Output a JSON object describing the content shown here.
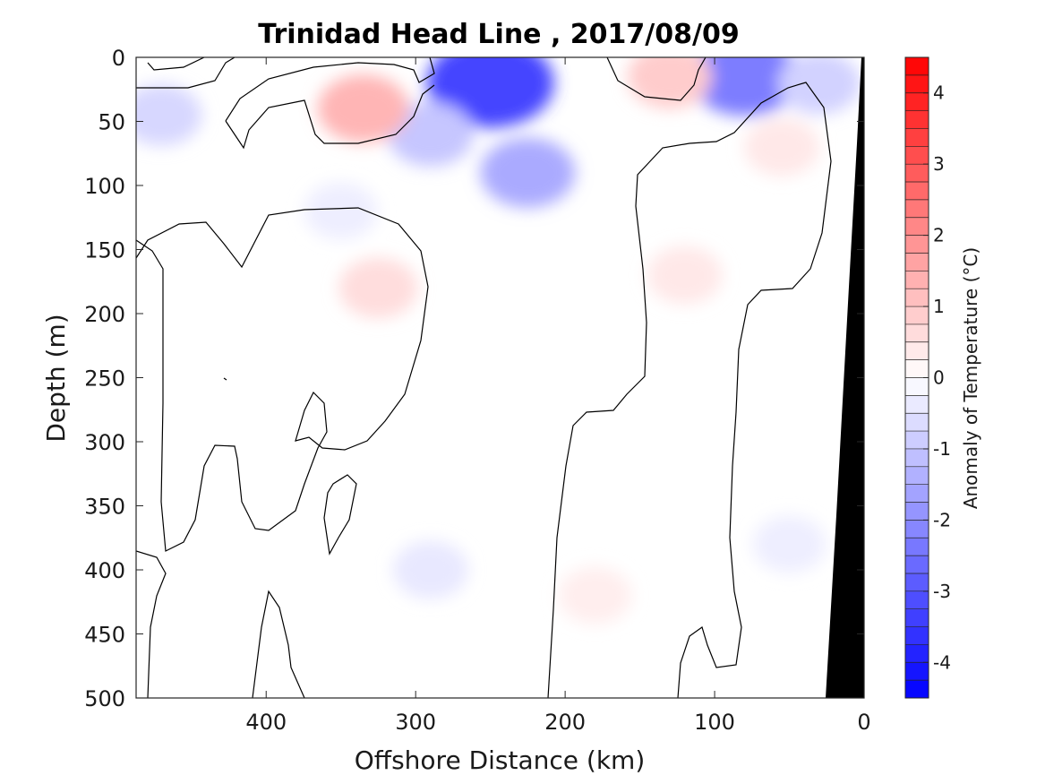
{
  "chart_data": {
    "type": "heatmap",
    "title": "Trinidad Head Line , 2017/08/09",
    "xlabel": "Offshore Distance (km)",
    "ylabel": "Depth (m)",
    "x_reversed": true,
    "y_reversed": true,
    "xlim": [
      487,
      0
    ],
    "ylim": [
      0,
      500
    ],
    "xticks": [
      400,
      300,
      200,
      100,
      0
    ],
    "yticks": [
      0,
      50,
      100,
      150,
      200,
      250,
      300,
      350,
      400,
      450,
      500
    ],
    "colorbar": {
      "label": "Anomaly of Temperature (°C)",
      "range": [
        -4.5,
        4.5
      ],
      "step": 0.25,
      "ticks": [
        4,
        3,
        2,
        1,
        0,
        -1,
        -2,
        -3,
        -4
      ],
      "negative_color": "#0000ff",
      "positive_color": "#ff0000",
      "zero_color": "#ffffff"
    },
    "seafloor_color": "#000000",
    "anomaly_features": [
      {
        "x": 250,
        "depth": 20,
        "value": -3.3
      },
      {
        "x": 225,
        "depth": 90,
        "value": -1.5
      },
      {
        "x": 290,
        "depth": 60,
        "value": -1.0
      },
      {
        "x": 80,
        "depth": 15,
        "value": -2.3
      },
      {
        "x": 30,
        "depth": 20,
        "value": -0.8
      },
      {
        "x": 470,
        "depth": 45,
        "value": -0.7
      },
      {
        "x": 350,
        "depth": 120,
        "value": -0.3
      },
      {
        "x": 335,
        "depth": 40,
        "value": 1.3
      },
      {
        "x": 130,
        "depth": 15,
        "value": 0.9
      },
      {
        "x": 325,
        "depth": 180,
        "value": 0.6
      },
      {
        "x": 120,
        "depth": 170,
        "value": 0.4
      },
      {
        "x": 55,
        "depth": 70,
        "value": 0.4
      },
      {
        "x": 180,
        "depth": 420,
        "value": 0.3
      },
      {
        "x": 290,
        "depth": 400,
        "value": -0.4
      },
      {
        "x": 50,
        "depth": 380,
        "value": -0.3
      }
    ]
  }
}
